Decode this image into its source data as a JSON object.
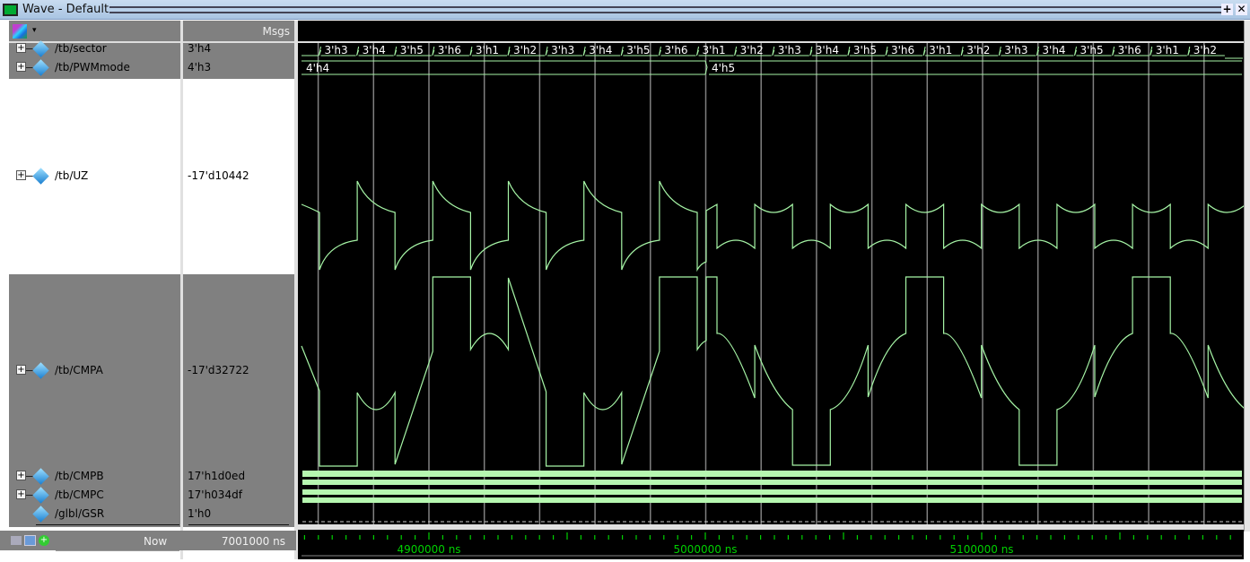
{
  "window": {
    "title": "Wave - Default",
    "maximize_icon": "plus-icon",
    "close_icon": "close-icon"
  },
  "header": {
    "msgs_label": "Msgs",
    "toolbar_icon": "signal-group-icon"
  },
  "signals": [
    {
      "name": "/tb/sector",
      "value": "3'h4",
      "expandable": true
    },
    {
      "name": "/tb/PWMmode",
      "value": "4'h3",
      "expandable": true
    },
    {
      "name": "/tb/UZ",
      "value": "-17'd10442",
      "expandable": true,
      "selected": true
    },
    {
      "name": "/tb/CMPA",
      "value": "-17'd32722",
      "expandable": true
    },
    {
      "name": "/tb/CMPB",
      "value": "17'h1d0ed",
      "expandable": true
    },
    {
      "name": "/tb/CMPC",
      "value": "17'h034df",
      "expandable": true
    },
    {
      "name": "/glbl/GSR",
      "value": "1'h0",
      "expandable": false
    }
  ],
  "sector_values": [
    "3'h3",
    "3'h4",
    "3'h5",
    "3'h6",
    "3'h1",
    "3'h2",
    "3'h3",
    "3'h4",
    "3'h5",
    "3'h6",
    "3'h1",
    "3'h2",
    "3'h3",
    "3'h4",
    "3'h5",
    "3'h6",
    "3'h1",
    "3'h2",
    "3'h3",
    "3'h4",
    "3'h5",
    "3'h6",
    "3'h1",
    "3'h2"
  ],
  "pwmmode_values": [
    "4'h4",
    "4'h5"
  ],
  "cursor": {
    "now_label": "Now",
    "now_value": "7001000 ns"
  },
  "timeline": {
    "labels": [
      "4900000 ns",
      "5000000 ns",
      "5100000 ns"
    ]
  },
  "colors": {
    "wave": "#a6f5a6",
    "bus_fill": "#b6f7b0",
    "grid": "#808080",
    "timeline": "#00d000",
    "background": "#000000"
  }
}
